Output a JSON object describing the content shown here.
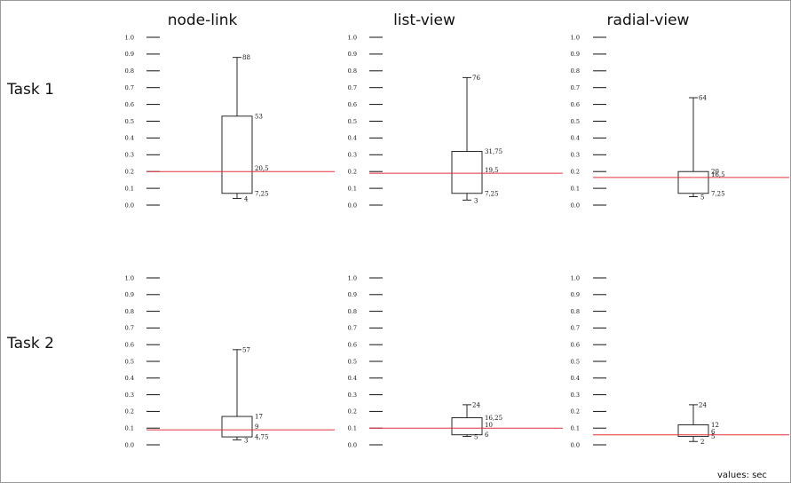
{
  "footnote": "values: sec",
  "chart_data": {
    "type": "boxplot",
    "ylim": [
      0,
      1
    ],
    "y_ticks": [
      "0.0",
      "0.1",
      "0.2",
      "0.3",
      "0.4",
      "0.5",
      "0.6",
      "0.7",
      "0.8",
      "0.9",
      "1.0"
    ],
    "columns": [
      "node-link",
      "list-view",
      "radial-view"
    ],
    "rows": [
      "Task 1",
      "Task 2"
    ],
    "reference_line_color": "#e0343a",
    "panels": [
      {
        "row": "Task 1",
        "column": "node-link",
        "whisker_low": 0.04,
        "q1": 0.07,
        "median": 0.2,
        "q3": 0.53,
        "whisker_high": 0.88,
        "labels": {
          "whisker_high": "88",
          "q3": "53",
          "median": "20,5",
          "q1": "7,25",
          "whisker_low": "4"
        }
      },
      {
        "row": "Task 1",
        "column": "list-view",
        "whisker_low": 0.03,
        "q1": 0.07,
        "median": 0.19,
        "q3": 0.32,
        "whisker_high": 0.76,
        "labels": {
          "whisker_high": "76",
          "q3": "31,75",
          "median": "19,5",
          "q1": "7,25",
          "whisker_low": "3"
        }
      },
      {
        "row": "Task 1",
        "column": "radial-view",
        "whisker_low": 0.05,
        "q1": 0.07,
        "median": 0.165,
        "q3": 0.2,
        "whisker_high": 0.64,
        "labels": {
          "whisker_high": "64",
          "q3": "20",
          "median": "16,5",
          "q1": "7,25",
          "whisker_low": "5"
        }
      },
      {
        "row": "Task 2",
        "column": "node-link",
        "whisker_low": 0.03,
        "q1": 0.0475,
        "median": 0.09,
        "q3": 0.17,
        "whisker_high": 0.57,
        "labels": {
          "whisker_high": "57",
          "q3": "17",
          "median": "9",
          "q1": "4,75",
          "whisker_low": "3"
        }
      },
      {
        "row": "Task 2",
        "column": "list-view",
        "whisker_low": 0.05,
        "q1": 0.06,
        "median": 0.1,
        "q3": 0.1625,
        "whisker_high": 0.24,
        "labels": {
          "whisker_high": "24",
          "q3": "16,25",
          "median": "10",
          "q1": "6",
          "whisker_low": "5"
        }
      },
      {
        "row": "Task 2",
        "column": "radial-view",
        "whisker_low": 0.02,
        "q1": 0.05,
        "median": 0.06,
        "q3": 0.12,
        "whisker_high": 0.24,
        "labels": {
          "whisker_high": "24",
          "q3": "12",
          "median": "6",
          "q1": "5",
          "whisker_low": "2"
        }
      }
    ]
  }
}
